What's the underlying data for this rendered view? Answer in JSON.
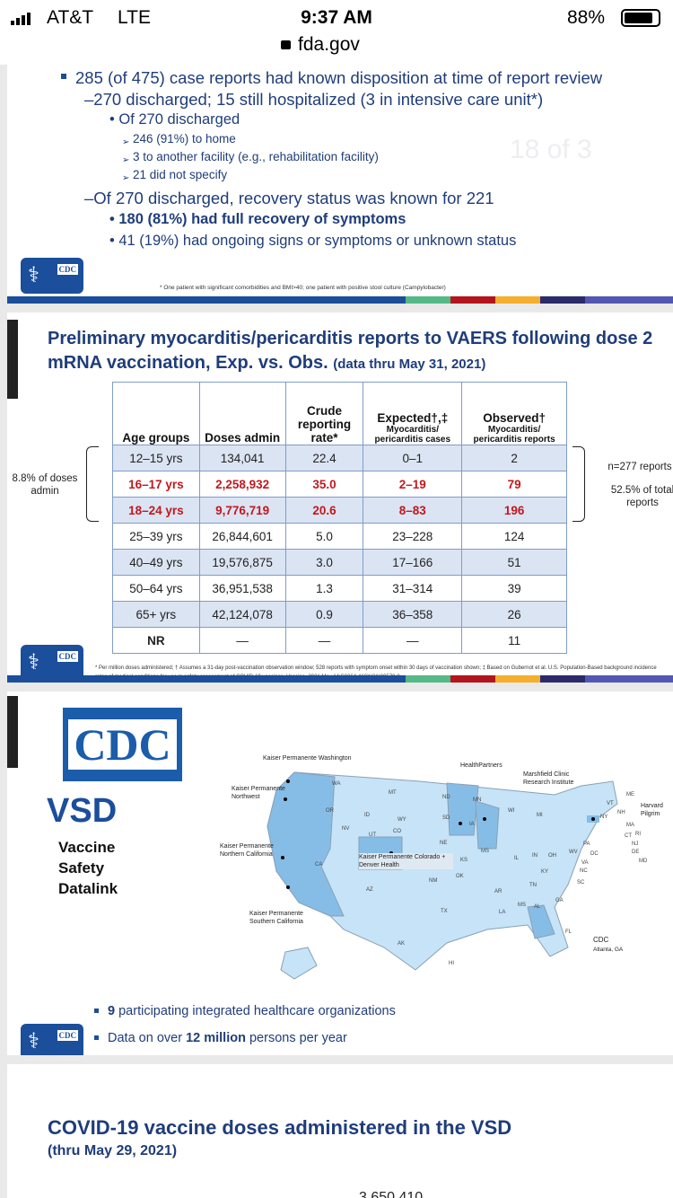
{
  "status_bar": {
    "carrier": "AT&T",
    "network": "LTE",
    "time": "9:37 AM",
    "battery": "88%",
    "url": "fda.gov"
  },
  "slide1": {
    "bullets": [
      "285 (of 475) case reports had known disposition at time of report review",
      "–270 discharged; 15 still hospitalized (3 in intensive care unit*)",
      "• Of 270 discharged",
      "246 (91%) to home",
      "3 to another facility (e.g., rehabilitation facility)",
      "21 did not specify",
      "–Of 270 discharged, recovery status was known for 221",
      "• 180 (81%) had full recovery of symptoms",
      "• 41 (19%) had ongoing signs or symptoms or unknown status"
    ],
    "watermark": "18 of 3",
    "footnote": "* One patient with significant comorbidities and BMI>40; one patient with positive stool culture (Campylobacter)",
    "logo": "CDC"
  },
  "slide2": {
    "title": "Preliminary myocarditis/pericarditis reports to VAERS following dose 2 mRNA vaccination, Exp. vs. Obs.",
    "title_suffix": "(data thru May 31, 2021)",
    "headers": [
      "Age groups",
      "Doses admin",
      "Crude reporting rate*",
      "Expected†,‡",
      "Myocarditis/ pericarditis cases",
      "Observed†",
      "Myocarditis/ pericarditis reports"
    ],
    "rows": [
      [
        "12–15 yrs",
        "134,041",
        "22.4",
        "0–1",
        "2"
      ],
      [
        "16–17 yrs",
        "2,258,932",
        "35.0",
        "2–19",
        "79"
      ],
      [
        "18–24 yrs",
        "9,776,719",
        "20.6",
        "8–83",
        "196"
      ],
      [
        "25–39 yrs",
        "26,844,601",
        "5.0",
        "23–228",
        "124"
      ],
      [
        "40–49 yrs",
        "19,576,875",
        "3.0",
        "17–166",
        "51"
      ],
      [
        "50–64 yrs",
        "36,951,538",
        "1.3",
        "31–314",
        "39"
      ],
      [
        "65+ yrs",
        "42,124,078",
        "0.9",
        "36–358",
        "26"
      ],
      [
        "NR",
        "—",
        "—",
        "—",
        "11"
      ]
    ],
    "left_note": "8.8% of doses admin",
    "right_note1": "n=277 reports",
    "right_note2": "52.5% of total reports",
    "footnote": "* Per million doses administered; † Assumes a 31-day post-vaccination observation window; 528 reports with symptom onset within 30 days of vaccination shown; ‡ Based on Gubernot et al. U.S. Population-Based background incidence rates of medical conditions for use in safety assessment of COVID-19 vaccines. Vaccine. 2021 May 14:S0264-410X(21)00578-8.",
    "logo": "CDC"
  },
  "slide3": {
    "big_logo": "CDC",
    "vsd": "VSD",
    "subtitle": [
      "Vaccine",
      "Safety",
      "Datalink"
    ],
    "map_labels": [
      "Kaiser Permanente Washington",
      "Kaiser Permanente Northwest",
      "Kaiser Permanente Northern California",
      "Kaiser Permanente Southern California",
      "Kaiser Permanente Colorado + Denver Health",
      "HealthPartners",
      "Marshfield Clinic Research Institute",
      "Harvard Pilgrim",
      "CDC",
      "Atlanta, GA"
    ],
    "states": [
      "WA",
      "OR",
      "CA",
      "NV",
      "ID",
      "MT",
      "WY",
      "UT",
      "AZ",
      "CO",
      "NM",
      "ND",
      "SD",
      "NE",
      "KS",
      "OK",
      "TX",
      "MN",
      "IA",
      "MS",
      "AR",
      "LA",
      "WI",
      "IL",
      "MI",
      "IN",
      "OH",
      "KY",
      "TN",
      "MS",
      "AL",
      "GA",
      "FL",
      "SC",
      "NC",
      "VA",
      "WV",
      "PA",
      "NY",
      "VT",
      "NH",
      "ME",
      "MA",
      "RI",
      "CT",
      "NJ",
      "DE",
      "MD",
      "DC",
      "AK",
      "HI"
    ],
    "bullet1_pre": "9",
    "bullet1_post": " participating integrated healthcare organizations",
    "bullet2_pre": "Data on over ",
    "bullet2_bold": "12 million",
    "bullet2_post": " persons per year",
    "logo": "CDC"
  },
  "slide4": {
    "title": "COVID-19 vaccine doses administered in the VSD",
    "subtitle": "(thru May 29, 2021)",
    "partial_value": "3,650,410"
  },
  "colors": {
    "navy": "#1b4e9b",
    "text": "#1f3d7a",
    "red": "#c0181f",
    "table_shade": "#dbe4f2",
    "map_light": "#c6e3f7",
    "map_dark": "#86bde6"
  }
}
